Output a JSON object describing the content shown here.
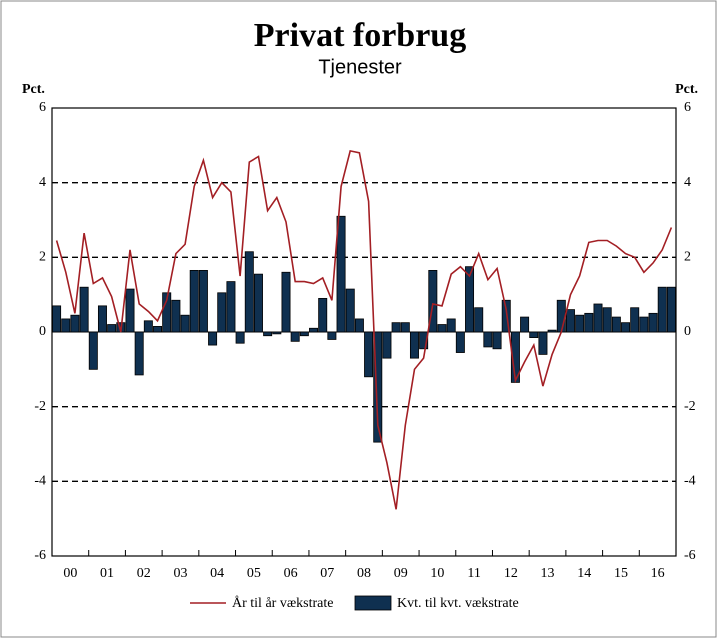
{
  "chart_data": {
    "type": "bar_line",
    "title": "Privat forbrug",
    "subtitle": "Tjenester",
    "y_label_left": "Pct.",
    "y_label_right": "Pct.",
    "x_labels": [
      "00",
      "01",
      "02",
      "03",
      "04",
      "05",
      "06",
      "07",
      "08",
      "09",
      "10",
      "11",
      "12",
      "13",
      "14",
      "15",
      "16"
    ],
    "ylim": [
      -6,
      6
    ],
    "yticks": [
      -6,
      -4,
      -2,
      0,
      2,
      4,
      6
    ],
    "y2lim": [
      -6,
      6
    ],
    "y2ticks": [
      -6,
      -4,
      -2,
      0,
      2,
      4,
      6
    ],
    "grid": true,
    "series": [
      {
        "name": "År til år vækstrate",
        "kind": "line",
        "color": "#a31f24",
        "values": [
          2.45,
          1.6,
          0.5,
          2.65,
          1.3,
          1.45,
          0.95,
          0.0,
          2.2,
          0.75,
          0.55,
          0.3,
          0.85,
          2.1,
          2.35,
          3.9,
          4.6,
          3.6,
          4.0,
          3.75,
          1.5,
          4.55,
          4.7,
          3.25,
          3.6,
          2.95,
          1.35,
          1.35,
          1.3,
          1.45,
          0.85,
          3.9,
          4.85,
          4.8,
          3.5,
          -2.5,
          -3.5,
          -4.75,
          -2.5,
          -1.0,
          -0.7,
          0.75,
          0.7,
          1.55,
          1.75,
          1.5,
          2.1,
          1.4,
          1.7,
          0.6,
          -1.3,
          -0.8,
          -0.35,
          -1.45,
          -0.6,
          0.0,
          1.0,
          1.5,
          2.4,
          2.45,
          2.45,
          2.3,
          2.1,
          2.0,
          1.6,
          1.85,
          2.2,
          2.8
        ]
      },
      {
        "name": "Kvt. til kvt. vækstrate",
        "kind": "bar",
        "color": "#0f3050",
        "values": [
          0.7,
          0.35,
          0.45,
          1.2,
          -1.0,
          0.7,
          0.2,
          0.25,
          1.15,
          -1.15,
          0.3,
          0.15,
          1.05,
          0.85,
          0.45,
          1.65,
          1.65,
          -0.35,
          1.05,
          1.35,
          -0.3,
          2.15,
          1.55,
          -0.1,
          -0.05,
          1.6,
          -0.25,
          -0.1,
          0.1,
          0.9,
          -0.2,
          3.1,
          1.15,
          0.35,
          -1.2,
          -2.95,
          -0.7,
          0.25,
          0.25,
          -0.7,
          -0.45,
          1.65,
          0.2,
          0.35,
          -0.55,
          1.75,
          0.65,
          -0.4,
          -0.45,
          0.85,
          -1.35,
          0.4,
          -0.15,
          -0.6,
          0.05,
          0.85,
          0.6,
          0.45,
          0.5,
          0.75,
          0.65,
          0.4,
          0.25,
          0.65,
          0.4,
          0.5,
          1.2,
          1.2
        ]
      }
    ]
  }
}
